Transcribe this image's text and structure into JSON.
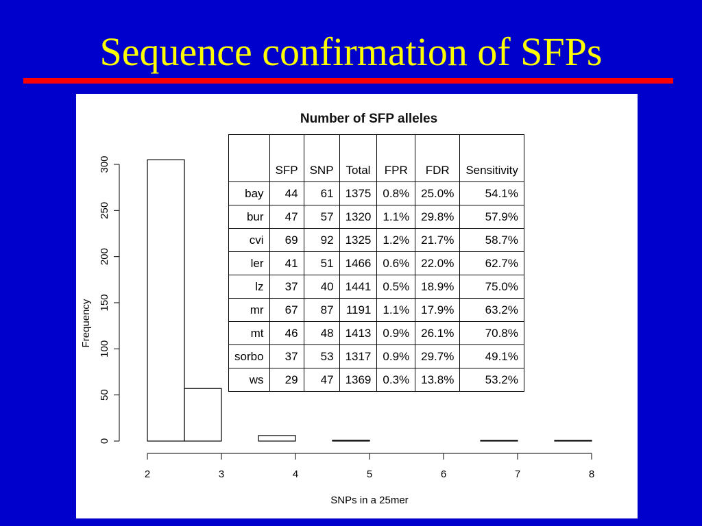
{
  "slide": {
    "title": "Sequence confirmation of SFPs"
  },
  "colors": {
    "background": "#0000cc",
    "title": "#ffff00",
    "rule": "#ff0000"
  },
  "chart_data": {
    "type": "bar",
    "categories": [
      "2",
      "3",
      "4",
      "5",
      "6",
      "7",
      "8"
    ],
    "bins": [
      {
        "from": 2,
        "to": 2.5,
        "value": 305
      },
      {
        "from": 2.5,
        "to": 3,
        "value": 57
      },
      {
        "from": 3,
        "to": 3.5,
        "value": 0
      },
      {
        "from": 3.5,
        "to": 4,
        "value": 6
      },
      {
        "from": 4,
        "to": 4.5,
        "value": 0
      },
      {
        "from": 4.5,
        "to": 5,
        "value": 1
      },
      {
        "from": 5,
        "to": 5.5,
        "value": 0
      },
      {
        "from": 5.5,
        "to": 6,
        "value": 0
      },
      {
        "from": 6,
        "to": 6.5,
        "value": 0
      },
      {
        "from": 6.5,
        "to": 7,
        "value": 0.5
      },
      {
        "from": 7,
        "to": 7.5,
        "value": 0
      },
      {
        "from": 7.5,
        "to": 8,
        "value": 0.5
      }
    ],
    "xlabel": "SNPs in a 25mer",
    "ylabel": "Frequency",
    "xticks": [
      2,
      3,
      4,
      5,
      6,
      7,
      8
    ],
    "yticks": [
      0,
      50,
      100,
      150,
      200,
      250,
      300
    ],
    "xlim": [
      2,
      8
    ],
    "ylim": [
      0,
      300
    ],
    "grid": false
  },
  "table": {
    "title": "Number of SFP alleles",
    "headers": [
      "",
      "SFP",
      "SNP",
      "Total",
      "FPR",
      "FDR",
      "Sensitivity"
    ],
    "rows": [
      [
        "bay",
        "44",
        "61",
        "1375",
        "0.8%",
        "25.0%",
        "54.1%"
      ],
      [
        "bur",
        "47",
        "57",
        "1320",
        "1.1%",
        "29.8%",
        "57.9%"
      ],
      [
        "cvi",
        "69",
        "92",
        "1325",
        "1.2%",
        "21.7%",
        "58.7%"
      ],
      [
        "ler",
        "41",
        "51",
        "1466",
        "0.6%",
        "22.0%",
        "62.7%"
      ],
      [
        "lz",
        "37",
        "40",
        "1441",
        "0.5%",
        "18.9%",
        "75.0%"
      ],
      [
        "mr",
        "67",
        "87",
        "1191",
        "1.1%",
        "17.9%",
        "63.2%"
      ],
      [
        "mt",
        "46",
        "48",
        "1413",
        "0.9%",
        "26.1%",
        "70.8%"
      ],
      [
        "sorbo",
        "37",
        "53",
        "1317",
        "0.9%",
        "29.7%",
        "49.1%"
      ],
      [
        "ws",
        "29",
        "47",
        "1369",
        "0.3%",
        "13.8%",
        "53.2%"
      ]
    ]
  }
}
